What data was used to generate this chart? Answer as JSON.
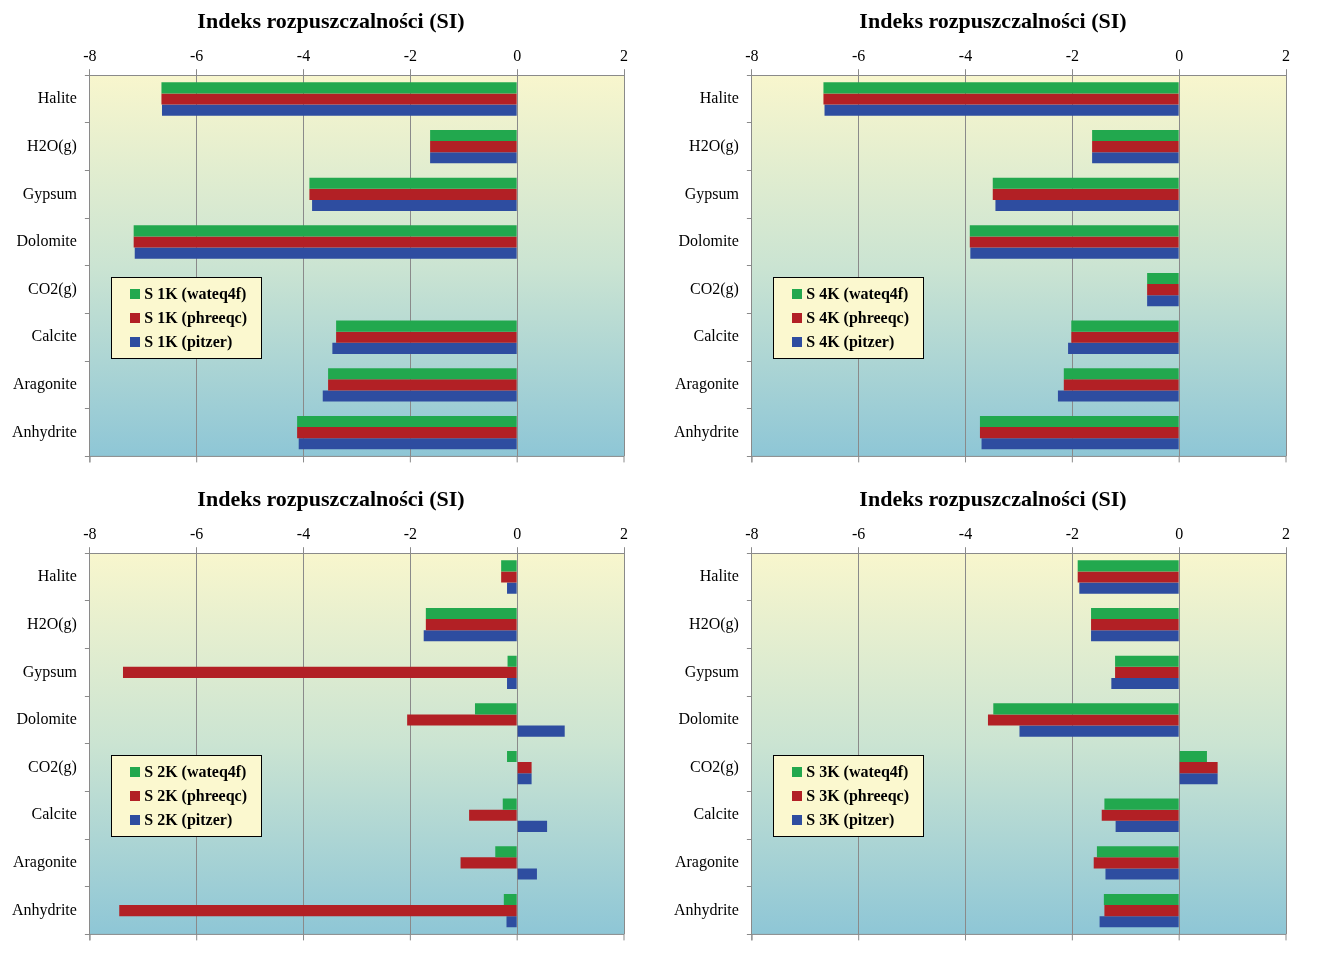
{
  "chart_data": [
    {
      "type": "bar",
      "orientation": "horizontal",
      "title": "Indeks rozpuszczalności (SI)",
      "categories": [
        "Halite",
        "H2O(g)",
        "Gypsum",
        "Dolomite",
        "CO2(g)",
        "Calcite",
        "Aragonite",
        "Anhydrite"
      ],
      "xlim": [
        -8,
        2
      ],
      "xticks": [
        -8,
        -6,
        -4,
        -2,
        0,
        2
      ],
      "grid": "x",
      "legend": "left",
      "series": [
        {
          "name": "S 1K (wateq4f)",
          "color": "#22a84e",
          "values": [
            -6.66,
            -1.63,
            -3.89,
            -7.18,
            null,
            -3.39,
            -3.54,
            -4.12
          ]
        },
        {
          "name": "S 1K (phreeqc)",
          "color": "#b22025",
          "values": [
            -6.66,
            -1.63,
            -3.89,
            -7.18,
            null,
            -3.39,
            -3.54,
            -4.12
          ]
        },
        {
          "name": "S 1K (pitzer)",
          "color": "#2e4da0",
          "values": [
            -6.65,
            -1.63,
            -3.84,
            -7.16,
            null,
            -3.46,
            -3.64,
            -4.09
          ]
        }
      ]
    },
    {
      "type": "bar",
      "orientation": "horizontal",
      "title": "Indeks rozpuszczalności (SI)",
      "categories": [
        "Halite",
        "H2O(g)",
        "Gypsum",
        "Dolomite",
        "CO2(g)",
        "Calcite",
        "Aragonite",
        "Anhydrite"
      ],
      "xlim": [
        -8,
        2
      ],
      "xticks": [
        -8,
        -6,
        -4,
        -2,
        0,
        2
      ],
      "grid": "x",
      "legend": "left",
      "series": [
        {
          "name": "S 4K (wateq4f)",
          "color": "#22a84e",
          "values": [
            -6.66,
            -1.63,
            -3.49,
            -3.92,
            -0.6,
            -2.02,
            -2.16,
            -3.73
          ]
        },
        {
          "name": "S 4K (phreeqc)",
          "color": "#b22025",
          "values": [
            -6.66,
            -1.63,
            -3.49,
            -3.92,
            -0.6,
            -2.02,
            -2.16,
            -3.73
          ]
        },
        {
          "name": "S 4K (pitzer)",
          "color": "#2e4da0",
          "values": [
            -6.64,
            -1.63,
            -3.44,
            -3.91,
            -0.6,
            -2.08,
            -2.27,
            -3.7
          ]
        }
      ]
    },
    {
      "type": "bar",
      "orientation": "horizontal",
      "title": "Indeks rozpuszczalności (SI)",
      "categories": [
        "Halite",
        "H2O(g)",
        "Gypsum",
        "Dolomite",
        "CO2(g)",
        "Calcite",
        "Aragonite",
        "Anhydrite"
      ],
      "xlim": [
        -8,
        2
      ],
      "xticks": [
        -8,
        -6,
        -4,
        -2,
        0,
        2
      ],
      "grid": "x",
      "legend": "left",
      "series": [
        {
          "name": "S 2K (wateq4f)",
          "color": "#22a84e",
          "values": [
            -0.3,
            -1.71,
            -0.18,
            -0.79,
            -0.19,
            -0.27,
            -0.41,
            -0.25
          ]
        },
        {
          "name": "S 2K (phreeqc)",
          "color": "#b22025",
          "values": [
            -0.3,
            -1.71,
            -7.38,
            -2.06,
            0.27,
            -0.9,
            -1.06,
            -7.45
          ]
        },
        {
          "name": "S 2K (pitzer)",
          "color": "#2e4da0",
          "values": [
            -0.19,
            -1.75,
            -0.19,
            0.89,
            0.27,
            0.56,
            0.37,
            -0.2
          ]
        }
      ]
    },
    {
      "type": "bar",
      "orientation": "horizontal",
      "title": "Indeks rozpuszczalności (SI)",
      "categories": [
        "Halite",
        "H2O(g)",
        "Gypsum",
        "Dolomite",
        "CO2(g)",
        "Calcite",
        "Aragonite",
        "Anhydrite"
      ],
      "xlim": [
        -8,
        2
      ],
      "xticks": [
        -8,
        -6,
        -4,
        -2,
        0,
        2
      ],
      "grid": "x",
      "legend": "left",
      "series": [
        {
          "name": "S 3K (wateq4f)",
          "color": "#22a84e",
          "values": [
            -1.9,
            -1.65,
            -1.2,
            -3.48,
            0.52,
            -1.4,
            -1.54,
            -1.41
          ]
        },
        {
          "name": "S 3K (phreeqc)",
          "color": "#b22025",
          "values": [
            -1.9,
            -1.65,
            -1.2,
            -3.58,
            0.72,
            -1.45,
            -1.6,
            -1.4
          ]
        },
        {
          "name": "S 3K (pitzer)",
          "color": "#2e4da0",
          "values": [
            -1.87,
            -1.65,
            -1.27,
            -2.99,
            0.72,
            -1.19,
            -1.38,
            -1.49
          ]
        }
      ]
    }
  ]
}
